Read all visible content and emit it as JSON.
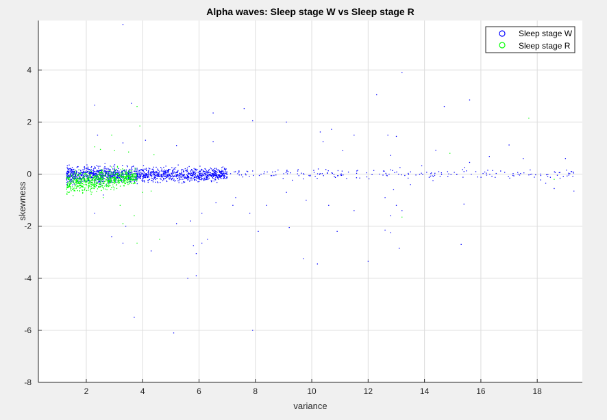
{
  "colors": {
    "background": "#f0f0f0",
    "axes_bg": "#ffffff",
    "grid": "#dcdcdc",
    "axis": "#262626",
    "series_w": "#0000ff",
    "series_r": "#00ff00"
  },
  "chart_data": {
    "type": "scatter",
    "title": "Alpha waves: Sleep stage W vs Sleep stage R",
    "xlabel": "variance",
    "ylabel": "skewness",
    "xlim": [
      0.3,
      19.6
    ],
    "ylim": [
      -8,
      5.9
    ],
    "xticks": [
      2,
      4,
      6,
      8,
      10,
      12,
      14,
      16,
      18
    ],
    "yticks": [
      -8,
      -6,
      -4,
      -2,
      0,
      2,
      4
    ],
    "grid": true,
    "legend_position": "top-right",
    "series": [
      {
        "name": "Sleep stage W",
        "color": "#0000ff",
        "marker": "point",
        "cluster": {
          "x_range": [
            1.3,
            7.0
          ],
          "y_center": 0.0,
          "spread": 0.12
        },
        "points": [
          [
            3.3,
            5.75
          ],
          [
            13.2,
            3.9
          ],
          [
            12.3,
            3.05
          ],
          [
            2.3,
            2.65
          ],
          [
            3.6,
            2.72
          ],
          [
            6.5,
            2.35
          ],
          [
            7.6,
            2.52
          ],
          [
            7.9,
            2.05
          ],
          [
            9.1,
            2.0
          ],
          [
            14.7,
            2.6
          ],
          [
            15.6,
            2.85
          ],
          [
            10.3,
            1.62
          ],
          [
            10.7,
            1.72
          ],
          [
            12.7,
            1.5
          ],
          [
            13.0,
            1.45
          ],
          [
            11.5,
            1.5
          ],
          [
            17.0,
            1.12
          ],
          [
            14.4,
            0.92
          ],
          [
            11.1,
            0.9
          ],
          [
            10.4,
            1.25
          ],
          [
            4.1,
            1.3
          ],
          [
            6.5,
            1.25
          ],
          [
            5.2,
            1.1
          ],
          [
            3.3,
            1.2
          ],
          [
            2.4,
            1.5
          ],
          [
            12.8,
            0.72
          ],
          [
            16.3,
            0.68
          ],
          [
            17.5,
            0.6
          ],
          [
            19.0,
            0.6
          ],
          [
            15.6,
            0.45
          ],
          [
            13.9,
            0.32
          ],
          [
            12.2,
            0.14
          ],
          [
            11.3,
            0.08
          ],
          [
            10.5,
            0.18
          ],
          [
            9.5,
            0.12
          ],
          [
            8.7,
            0.1
          ],
          [
            8.2,
            0.0
          ],
          [
            9.9,
            -0.05
          ],
          [
            10.8,
            -0.1
          ],
          [
            11.7,
            -0.15
          ],
          [
            12.4,
            0.0
          ],
          [
            13.3,
            -0.05
          ],
          [
            14.6,
            0.05
          ],
          [
            15.4,
            0.1
          ],
          [
            16.7,
            0.12
          ],
          [
            17.8,
            0.0
          ],
          [
            18.3,
            -0.35
          ],
          [
            18.6,
            -0.55
          ],
          [
            19.2,
            0.1
          ],
          [
            19.3,
            -0.65
          ],
          [
            14.3,
            -0.25
          ],
          [
            13.5,
            -0.4
          ],
          [
            12.9,
            -0.6
          ],
          [
            12.6,
            -0.9
          ],
          [
            13.0,
            -1.2
          ],
          [
            13.2,
            -1.4
          ],
          [
            12.8,
            -1.6
          ],
          [
            11.5,
            -1.4
          ],
          [
            10.6,
            -1.2
          ],
          [
            9.8,
            -1.0
          ],
          [
            9.1,
            -0.7
          ],
          [
            8.4,
            -1.2
          ],
          [
            7.8,
            -1.5
          ],
          [
            7.2,
            -1.2
          ],
          [
            6.6,
            -1.1
          ],
          [
            6.1,
            -1.5
          ],
          [
            5.7,
            -1.8
          ],
          [
            5.2,
            -1.9
          ],
          [
            6.3,
            -2.5
          ],
          [
            5.8,
            -2.75
          ],
          [
            5.9,
            -3.05
          ],
          [
            6.1,
            -2.65
          ],
          [
            5.6,
            -4.0
          ],
          [
            5.9,
            -3.9
          ],
          [
            9.2,
            -2.05
          ],
          [
            10.9,
            -2.2
          ],
          [
            12.6,
            -2.15
          ],
          [
            12.8,
            -2.25
          ],
          [
            13.1,
            -2.85
          ],
          [
            12.0,
            -3.35
          ],
          [
            15.3,
            -2.7
          ],
          [
            15.4,
            -1.15
          ],
          [
            9.7,
            -3.25
          ],
          [
            10.2,
            -3.45
          ],
          [
            8.1,
            -2.2
          ],
          [
            3.7,
            -5.5
          ],
          [
            5.1,
            -6.1
          ],
          [
            7.9,
            -6.0
          ],
          [
            3.3,
            -2.65
          ],
          [
            2.9,
            -2.4
          ],
          [
            4.3,
            -2.95
          ],
          [
            3.4,
            -2.0
          ],
          [
            2.3,
            -1.5
          ],
          [
            2.6,
            -0.8
          ],
          [
            7.3,
            -0.9
          ]
        ]
      },
      {
        "name": "Sleep stage R",
        "color": "#00ff00",
        "marker": "point",
        "cluster": {
          "x_range": [
            1.3,
            3.8
          ],
          "y_center": -0.35,
          "spread": 0.14
        },
        "points": [
          [
            3.8,
            2.6
          ],
          [
            3.9,
            1.85
          ],
          [
            2.3,
            1.05
          ],
          [
            2.5,
            0.95
          ],
          [
            3.0,
            0.9
          ],
          [
            3.5,
            0.85
          ],
          [
            4.4,
            0.75
          ],
          [
            2.9,
            1.5
          ],
          [
            2.6,
            -0.9
          ],
          [
            3.2,
            -1.2
          ],
          [
            3.3,
            -1.9
          ],
          [
            3.7,
            -1.6
          ],
          [
            4.0,
            -0.7
          ],
          [
            4.3,
            -0.65
          ],
          [
            4.6,
            -2.5
          ],
          [
            3.8,
            -2.65
          ],
          [
            17.7,
            2.15
          ],
          [
            18.6,
            -0.2
          ],
          [
            13.2,
            -1.65
          ],
          [
            14.9,
            0.8
          ]
        ]
      }
    ]
  }
}
